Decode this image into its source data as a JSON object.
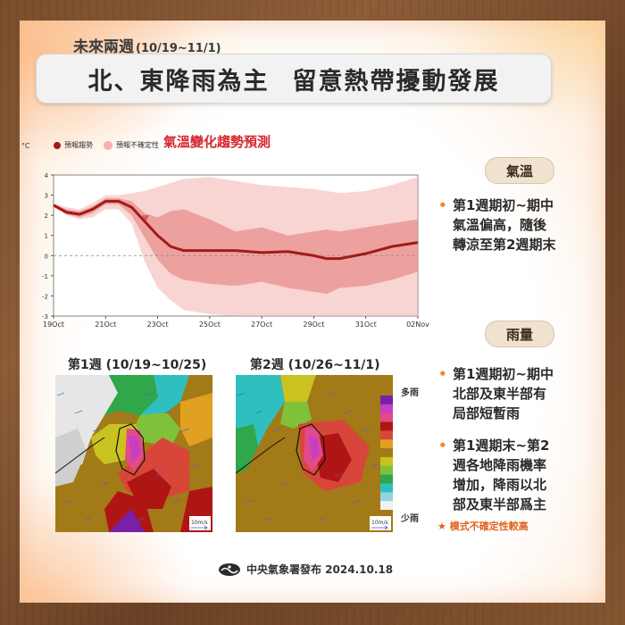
{
  "header": {
    "subtitle": "未來兩週",
    "subtitle_dates": "(10/19~11/1)",
    "title_part1": "北、東降雨為主",
    "title_part2": "留意熱帶擾動發展"
  },
  "temperature_chart": {
    "title": "氣溫變化趨勢預測",
    "unit": "°C",
    "legend_trend": "預報趨勢",
    "legend_uncertainty": "預報不確定性"
  },
  "chart_data": {
    "type": "line",
    "title": "氣溫變化趨勢預測",
    "ylabel": "°C",
    "xlabel": "",
    "ylim": [
      -3,
      4
    ],
    "yticks": [
      4,
      3,
      2,
      1,
      0,
      -1,
      -2,
      -3
    ],
    "xlim": [
      0,
      14
    ],
    "xtick_positions": [
      0,
      2,
      4,
      6,
      8,
      10,
      12,
      14
    ],
    "xtick_labels": [
      "19Oct",
      "21Oct",
      "23Oct",
      "25Oct",
      "27Oct",
      "29Oct",
      "31Oct",
      "02Nov"
    ],
    "grid": false,
    "legend": "top-left",
    "series": [
      {
        "name": "預報趨勢",
        "color": "#a11a1a",
        "x": [
          0,
          0.5,
          1,
          1.5,
          2,
          2.5,
          3,
          3.5,
          4,
          4.5,
          5,
          6,
          7,
          8,
          9,
          10,
          10.5,
          11,
          12,
          13,
          14
        ],
        "y": [
          2.5,
          2.15,
          2.05,
          2.3,
          2.7,
          2.7,
          2.4,
          1.7,
          1.0,
          0.45,
          0.25,
          0.25,
          0.25,
          0.15,
          0.2,
          0.0,
          -0.15,
          -0.15,
          0.1,
          0.45,
          0.65
        ]
      },
      {
        "name": "預報不確定性",
        "type": "band",
        "color": "#f3b1ad",
        "x": [
          0,
          0.5,
          1,
          1.5,
          2,
          2.5,
          3,
          3.5,
          4,
          4.5,
          5,
          6,
          7,
          8,
          9,
          10,
          10.5,
          11,
          12,
          13,
          14
        ],
        "upper": [
          2.6,
          2.4,
          2.3,
          2.6,
          3.0,
          3.0,
          3.1,
          3.2,
          3.4,
          3.6,
          3.8,
          3.9,
          3.7,
          3.5,
          3.4,
          3.3,
          3.2,
          3.1,
          3.2,
          3.5,
          3.9
        ],
        "lower": [
          2.4,
          2.0,
          1.8,
          1.9,
          2.3,
          2.3,
          1.6,
          -0.3,
          -1.6,
          -2.2,
          -2.7,
          -2.9,
          -3.0,
          -3.0,
          -3.0,
          -3.0,
          -3.0,
          -3.0,
          -3.0,
          -3.0,
          -3.0
        ]
      },
      {
        "name": "",
        "type": "band-inner",
        "color": "#e8908c",
        "x": [
          0,
          0.5,
          1,
          1.5,
          2,
          2.5,
          3,
          3.5,
          4,
          4.5,
          5,
          6,
          7,
          8,
          9,
          10,
          10.5,
          11,
          12,
          13,
          14
        ],
        "upper": [
          2.55,
          2.3,
          2.2,
          2.45,
          2.85,
          2.85,
          2.7,
          2.1,
          1.9,
          2.2,
          2.3,
          1.8,
          1.2,
          1.4,
          1.0,
          1.2,
          1.3,
          1.2,
          1.4,
          1.6,
          1.8
        ],
        "lower": [
          2.45,
          2.05,
          1.9,
          2.1,
          2.55,
          2.55,
          2.0,
          0.9,
          -0.2,
          -0.9,
          -1.2,
          -1.4,
          -1.5,
          -1.3,
          -1.6,
          -1.8,
          -1.9,
          -1.6,
          -1.5,
          -1.2,
          -0.8
        ]
      }
    ]
  },
  "temperature_section": {
    "label": "氣溫",
    "bullets": [
      "第1週期初~期中",
      "氣溫偏高，隨後",
      "轉涼至第2週期末"
    ]
  },
  "rain_section": {
    "label": "雨量",
    "bullet1": [
      "第1週期初~期中",
      "北部及東半部有",
      "局部短暫雨"
    ],
    "bullet2": [
      "第1週期末~第2",
      "週各地降雨機率",
      "增加，降雨以北",
      "部及東半部爲主"
    ],
    "note": "★ 模式不確定性較高"
  },
  "maps": {
    "week1_title": "第1週 (10/19~10/25)",
    "week2_title": "第2週 (10/26~11/1)",
    "wind_label": "10m/s",
    "colorbar_top": "多雨",
    "colorbar_bottom": "少雨",
    "colorbar_colors": [
      "#7a1fa8",
      "#c63ec2",
      "#e24a8a",
      "#b01515",
      "#d8463a",
      "#e0a020",
      "#a37a18",
      "#c9c220",
      "#7fc23a",
      "#2fa74a",
      "#2fbfbf",
      "#8fd6e0",
      "#f2f2f2"
    ]
  },
  "footer": {
    "text": "中央氣象署發布 2024.10.18"
  }
}
